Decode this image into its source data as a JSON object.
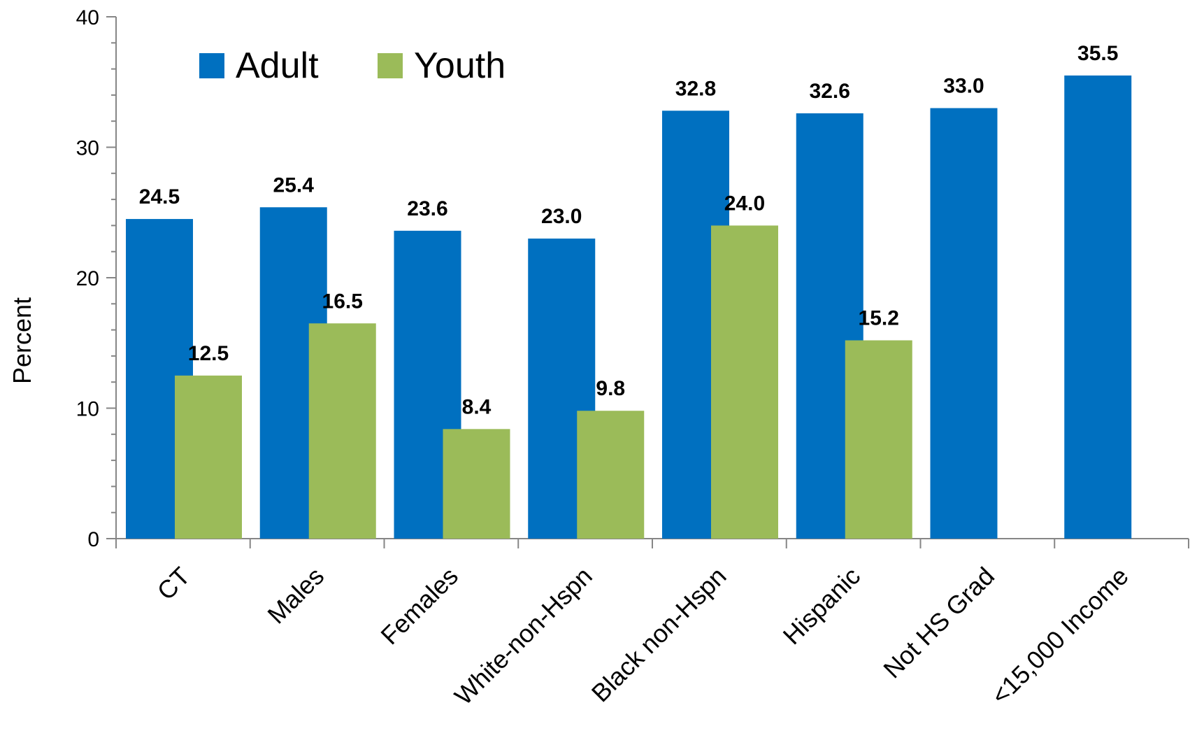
{
  "chart_data": {
    "type": "bar",
    "categories": [
      "CT",
      "Males",
      "Females",
      "White-non-Hspn",
      "Black non-Hspn",
      "Hispanic",
      "Not HS Grad",
      "<15,000 Income"
    ],
    "series": [
      {
        "name": "Adult",
        "color": "#0070C0",
        "values": [
          24.5,
          25.4,
          23.6,
          23.0,
          32.8,
          32.6,
          33.0,
          35.5
        ]
      },
      {
        "name": "Youth",
        "color": "#9BBB59",
        "values": [
          12.5,
          16.5,
          8.4,
          9.8,
          24.0,
          15.2,
          null,
          null
        ]
      }
    ],
    "ylabel": "Percent",
    "ylim": [
      0,
      40
    ],
    "yticks": [
      0,
      10,
      20,
      30,
      40
    ],
    "grid": false,
    "legend_position": "top-left"
  }
}
